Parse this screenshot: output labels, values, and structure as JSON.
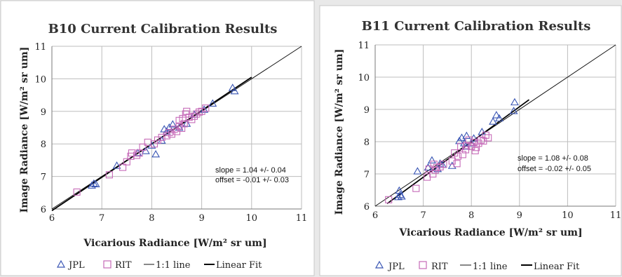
{
  "chart_data": [
    {
      "type": "scatter",
      "title": "B10 Current Calibration Results",
      "xlabel": "Vicarious Radiance [W/m² sr um]",
      "ylabel": "Image Radiance [W/m² sr um]",
      "xlim": [
        6,
        11
      ],
      "ylim": [
        6,
        11
      ],
      "x_ticks": [
        "6",
        "7",
        "8",
        "9",
        "10",
        "11"
      ],
      "y_ticks": [
        "6",
        "7",
        "8",
        "9",
        "10",
        "11"
      ],
      "grid": true,
      "legend_position": "bottom",
      "annotation": [
        "slope = 1.04 +/- 0.04",
        "offset = -0.01 +/- 0.03"
      ],
      "legend": [
        "JPL",
        "RIT",
        "1:1 line",
        "Linear Fit"
      ],
      "series": [
        {
          "name": "JPL",
          "marker": "triangle",
          "color": "#3a56b4",
          "points": [
            [
              6.8,
              6.72
            ],
            [
              6.84,
              6.78
            ],
            [
              6.88,
              6.76
            ],
            [
              7.3,
              7.33
            ],
            [
              7.72,
              7.72
            ],
            [
              7.88,
              7.78
            ],
            [
              8.0,
              7.95
            ],
            [
              8.08,
              7.68
            ],
            [
              8.2,
              8.1
            ],
            [
              8.25,
              8.45
            ],
            [
              8.3,
              8.38
            ],
            [
              8.35,
              8.5
            ],
            [
              8.42,
              8.6
            ],
            [
              8.55,
              8.5
            ],
            [
              8.7,
              8.62
            ],
            [
              8.85,
              8.9
            ],
            [
              9.05,
              9.05
            ],
            [
              9.22,
              9.24
            ],
            [
              9.62,
              9.72
            ],
            [
              9.66,
              9.62
            ]
          ]
        },
        {
          "name": "RIT",
          "marker": "square",
          "color": "#c66ab8",
          "points": [
            [
              6.5,
              6.52
            ],
            [
              7.15,
              7.05
            ],
            [
              7.42,
              7.28
            ],
            [
              7.5,
              7.45
            ],
            [
              7.58,
              7.62
            ],
            [
              7.6,
              7.72
            ],
            [
              7.7,
              7.65
            ],
            [
              7.75,
              7.72
            ],
            [
              7.82,
              7.9
            ],
            [
              7.92,
              8.05
            ],
            [
              8.05,
              8.0
            ],
            [
              8.12,
              8.12
            ],
            [
              8.2,
              8.2
            ],
            [
              8.3,
              8.25
            ],
            [
              8.35,
              8.35
            ],
            [
              8.4,
              8.3
            ],
            [
              8.45,
              8.45
            ],
            [
              8.5,
              8.38
            ],
            [
              8.55,
              8.55
            ],
            [
              8.55,
              8.72
            ],
            [
              8.6,
              8.48
            ],
            [
              8.62,
              8.78
            ],
            [
              8.65,
              8.62
            ],
            [
              8.68,
              8.92
            ],
            [
              8.7,
              9.0
            ],
            [
              8.75,
              8.82
            ],
            [
              8.8,
              8.75
            ],
            [
              8.85,
              8.85
            ],
            [
              8.9,
              8.92
            ],
            [
              8.95,
              8.98
            ],
            [
              9.0,
              9.0
            ],
            [
              9.08,
              9.1
            ]
          ]
        },
        {
          "name": "1:1 line",
          "style": "thin",
          "color": "#111111",
          "points": [
            [
              6,
              6
            ],
            [
              11,
              11
            ]
          ]
        },
        {
          "name": "Linear Fit",
          "style": "thick",
          "color": "#000000",
          "points": [
            [
              6.0,
              5.95
            ],
            [
              10.0,
              10.05
            ]
          ]
        }
      ]
    },
    {
      "type": "scatter",
      "title": "B11 Current Calibration Results",
      "xlabel": "Vicarious Radiance [W/m² sr um]",
      "ylabel": "Image Radiance [W/m² sr um]",
      "xlim": [
        6,
        11
      ],
      "ylim": [
        6,
        11
      ],
      "x_ticks": [
        "6",
        "7",
        "8",
        "9",
        "10",
        "11"
      ],
      "y_ticks": [
        "6",
        "7",
        "8",
        "9",
        "10",
        "11"
      ],
      "grid": true,
      "legend_position": "bottom",
      "annotation": [
        "slope = 1.08 +/- 0.08",
        "offset = -0.02 +/- 0.05"
      ],
      "legend": [
        "JPL",
        "RIT",
        "1:1 line",
        "Linear Fit"
      ],
      "series": [
        {
          "name": "JPL",
          "marker": "triangle",
          "color": "#3a56b4",
          "points": [
            [
              6.48,
              6.28
            ],
            [
              6.5,
              6.48
            ],
            [
              6.52,
              6.35
            ],
            [
              6.55,
              6.3
            ],
            [
              6.88,
              7.08
            ],
            [
              7.1,
              7.2
            ],
            [
              7.18,
              7.42
            ],
            [
              7.3,
              7.15
            ],
            [
              7.35,
              7.32
            ],
            [
              7.4,
              7.28
            ],
            [
              7.6,
              7.25
            ],
            [
              7.75,
              8.02
            ],
            [
              7.8,
              8.12
            ],
            [
              7.85,
              7.95
            ],
            [
              7.88,
              7.85
            ],
            [
              7.9,
              8.18
            ],
            [
              8.0,
              7.95
            ],
            [
              8.05,
              8.1
            ],
            [
              8.22,
              8.3
            ],
            [
              8.45,
              8.62
            ],
            [
              8.52,
              8.82
            ],
            [
              8.58,
              8.72
            ],
            [
              8.88,
              8.95
            ],
            [
              8.9,
              9.22
            ]
          ]
        },
        {
          "name": "RIT",
          "marker": "square",
          "color": "#c66ab8",
          "points": [
            [
              6.28,
              6.2
            ],
            [
              6.85,
              6.55
            ],
            [
              7.08,
              6.9
            ],
            [
              7.12,
              7.15
            ],
            [
              7.2,
              7.0
            ],
            [
              7.22,
              7.3
            ],
            [
              7.25,
              7.12
            ],
            [
              7.28,
              7.2
            ],
            [
              7.35,
              7.22
            ],
            [
              7.42,
              7.3
            ],
            [
              7.6,
              7.4
            ],
            [
              7.65,
              7.65
            ],
            [
              7.7,
              7.32
            ],
            [
              7.72,
              7.55
            ],
            [
              7.78,
              7.85
            ],
            [
              7.82,
              7.6
            ],
            [
              7.88,
              7.75
            ],
            [
              7.9,
              7.88
            ],
            [
              7.95,
              8.05
            ],
            [
              8.0,
              7.85
            ],
            [
              8.05,
              7.98
            ],
            [
              8.08,
              7.72
            ],
            [
              8.1,
              7.82
            ],
            [
              8.15,
              7.95
            ],
            [
              8.2,
              8.05
            ],
            [
              8.25,
              8.02
            ],
            [
              8.3,
              8.2
            ],
            [
              8.35,
              8.12
            ]
          ]
        },
        {
          "name": "1:1 line",
          "style": "thin",
          "color": "#111111",
          "points": [
            [
              6,
              6
            ],
            [
              11,
              11
            ]
          ]
        },
        {
          "name": "Linear Fit",
          "style": "thick",
          "color": "#000000",
          "points": [
            [
              6.25,
              6.08
            ],
            [
              9.2,
              9.3
            ]
          ]
        }
      ]
    }
  ]
}
